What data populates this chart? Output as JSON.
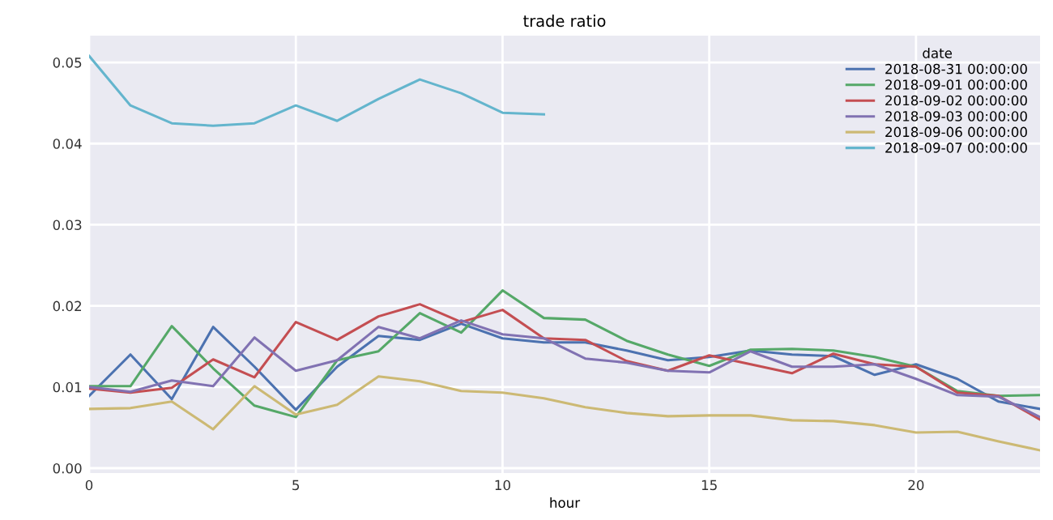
{
  "chart_data": {
    "type": "line",
    "title": "trade ratio",
    "xlabel": "hour",
    "legend_title": "date",
    "legend": "top right",
    "grid": true,
    "x": [
      0,
      1,
      2,
      3,
      4,
      5,
      6,
      7,
      8,
      9,
      10,
      11,
      12,
      13,
      14,
      15,
      16,
      17,
      18,
      19,
      20,
      21,
      22,
      23
    ],
    "xlim": [
      0,
      23
    ],
    "xticks": [
      0,
      5,
      10,
      15,
      20
    ],
    "ylim": [
      -0.0006,
      0.0533
    ],
    "yticks": [
      {
        "value": 0,
        "label": "0.00"
      },
      {
        "value": 0.01,
        "label": "0.01"
      },
      {
        "value": 0.02,
        "label": "0.02"
      },
      {
        "value": 0.03,
        "label": "0.03"
      },
      {
        "value": 0.04,
        "label": "0.04"
      },
      {
        "value": 0.05,
        "label": "0.05"
      }
    ],
    "series": [
      {
        "name": "2018-08-31 00:00:00",
        "color": "#4c72b0",
        "values": [
          0.0089,
          0.014,
          0.0085,
          0.0174,
          0.0125,
          0.0072,
          0.0125,
          0.0163,
          0.0158,
          0.0178,
          0.016,
          0.0155,
          0.0155,
          0.0145,
          0.0133,
          0.0137,
          0.0145,
          0.014,
          0.0138,
          0.0115,
          0.0128,
          0.011,
          0.0082,
          0.0073
        ]
      },
      {
        "name": "2018-09-01 00:00:00",
        "color": "#55a868",
        "values": [
          0.0101,
          0.0101,
          0.0175,
          0.0123,
          0.0077,
          0.0063,
          0.0133,
          0.0144,
          0.0191,
          0.0167,
          0.0219,
          0.0185,
          0.0183,
          0.0157,
          0.014,
          0.0126,
          0.0146,
          0.0147,
          0.0145,
          0.0137,
          0.0125,
          0.0095,
          0.0089,
          0.009
        ]
      },
      {
        "name": "2018-09-02 00:00:00",
        "color": "#c44e52",
        "values": [
          0.0098,
          0.0093,
          0.0099,
          0.0134,
          0.0112,
          0.018,
          0.0158,
          0.0187,
          0.0202,
          0.018,
          0.0195,
          0.016,
          0.0158,
          0.0132,
          0.012,
          0.0139,
          0.0128,
          0.0117,
          0.0141,
          0.0128,
          0.0125,
          0.0093,
          0.0089,
          0.006
        ]
      },
      {
        "name": "2018-09-03 00:00:00",
        "color": "#8172b2",
        "values": [
          0.01,
          0.0094,
          0.0108,
          0.0101,
          0.0161,
          0.012,
          0.0133,
          0.0174,
          0.016,
          0.0182,
          0.0165,
          0.016,
          0.0135,
          0.013,
          0.012,
          0.0118,
          0.0144,
          0.0125,
          0.0125,
          0.0128,
          0.011,
          0.009,
          0.0088,
          0.0063
        ]
      },
      {
        "name": "2018-09-06 00:00:00",
        "color": "#ccb974",
        "values": [
          0.0073,
          0.0074,
          0.0082,
          0.0048,
          0.0101,
          0.0066,
          0.0078,
          0.0113,
          0.0107,
          0.0095,
          0.0093,
          0.0086,
          0.0075,
          0.0068,
          0.0064,
          0.0065,
          0.0065,
          0.0059,
          0.0058,
          0.0053,
          0.0044,
          0.0045,
          0.0033,
          0.0022
        ]
      },
      {
        "name": "2018-09-07 00:00:00",
        "color": "#64b5cd",
        "values": [
          0.0508,
          0.0447,
          0.0425,
          0.0422,
          0.0425,
          0.0447,
          0.0428,
          0.0455,
          0.0479,
          0.0462,
          0.0438,
          0.0436,
          null,
          null,
          null,
          null,
          null,
          null,
          null,
          null,
          null,
          null,
          null,
          null
        ]
      }
    ]
  }
}
